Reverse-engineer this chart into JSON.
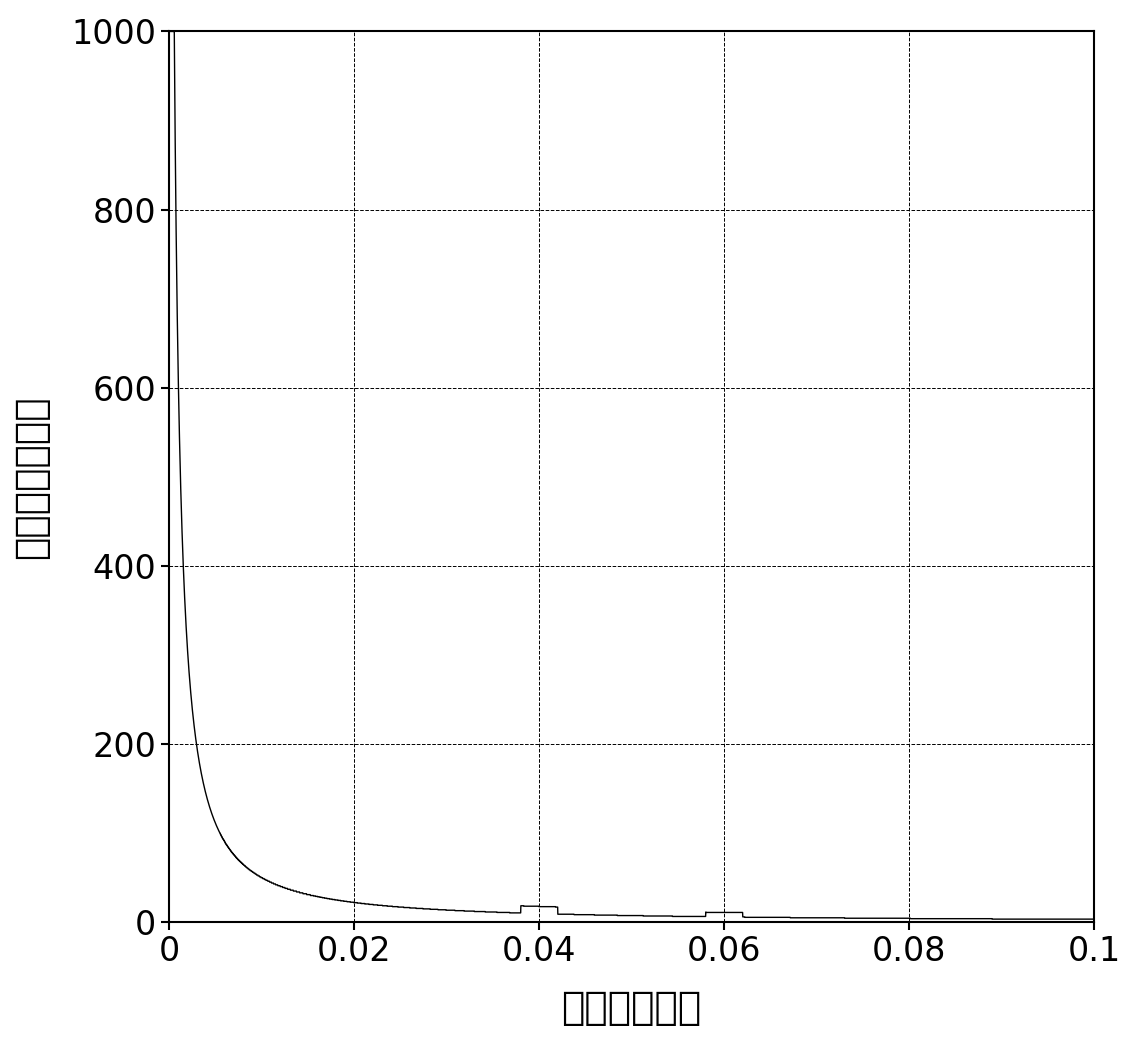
{
  "xlabel": "距离（毫米）",
  "ylabel": "声压幅値（幅）",
  "xlim": [
    0,
    0.1
  ],
  "ylim": [
    0,
    1000
  ],
  "xticks": [
    0,
    0.02,
    0.04,
    0.06,
    0.08,
    0.1
  ],
  "yticks": [
    0,
    200,
    400,
    600,
    800,
    1000
  ],
  "grid_color": "#000000",
  "line_color": "#000000",
  "background_color": "#ffffff"
}
